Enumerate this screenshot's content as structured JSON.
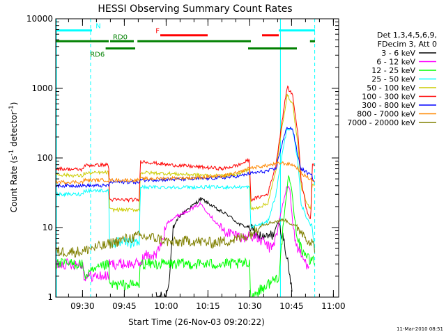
{
  "chart_data": {
    "type": "line",
    "title": "HESSI Observing Summary Count Rates",
    "xlabel": "Start Time (26-Nov-03 09:20:22)",
    "ylabel_main": "Count Rate (s",
    "ylabel_sup1": "-1",
    "ylabel_mid": " detector",
    "ylabel_sup2": "-1",
    "ylabel_end": ")",
    "footer": "11-Mar-2010 08:51",
    "x_unit": "minutes since 09:20:22",
    "xlim": [
      0,
      101.5
    ],
    "ylim": [
      1,
      10000
    ],
    "y_scale": "log",
    "x_ticks": [
      {
        "label": "09:30",
        "t": 9.6
      },
      {
        "label": "09:45",
        "t": 24.6
      },
      {
        "label": "10:00",
        "t": 39.6
      },
      {
        "label": "10:15",
        "t": 54.6
      },
      {
        "label": "10:30",
        "t": 69.6
      },
      {
        "label": "10:45",
        "t": 84.6
      },
      {
        "label": "11:00",
        "t": 99.6
      }
    ],
    "y_ticks": [
      {
        "label": "1",
        "v": 1
      },
      {
        "label": "10",
        "v": 10
      },
      {
        "label": "100",
        "v": 100
      },
      {
        "label": "1000",
        "v": 1000
      },
      {
        "label": "10000",
        "v": 10000
      }
    ],
    "legend_header": [
      "Det 1,3,4,5,6,9,",
      "FDecim 3, Att 0"
    ],
    "legend_position": "right",
    "series": [
      {
        "name": "3 - 6 keV",
        "color": "#000000",
        "points": [
          [
            36,
            1
          ],
          [
            39,
            1
          ],
          [
            40,
            1.2
          ],
          [
            41,
            2.5
          ],
          [
            42,
            9
          ],
          [
            44,
            14
          ],
          [
            47,
            18
          ],
          [
            50,
            22
          ],
          [
            52,
            26
          ],
          [
            55,
            22
          ],
          [
            58,
            18
          ],
          [
            62,
            15
          ],
          [
            66,
            11
          ],
          [
            69.6,
            10
          ],
          [
            72,
            8
          ],
          [
            75,
            7
          ],
          [
            78,
            8
          ],
          [
            80,
            12
          ],
          [
            82,
            6
          ],
          [
            84,
            2
          ],
          [
            85,
            1
          ]
        ]
      },
      {
        "name": "6 - 12 keV",
        "color": "#ff00ff",
        "points": [
          [
            0,
            3
          ],
          [
            8,
            3
          ],
          [
            9.8,
            3
          ],
          [
            10,
            2
          ],
          [
            19,
            2
          ],
          [
            19.3,
            3
          ],
          [
            30,
            3
          ],
          [
            32,
            4
          ],
          [
            36,
            4
          ],
          [
            38,
            6
          ],
          [
            40,
            12
          ],
          [
            44,
            15
          ],
          [
            48,
            18
          ],
          [
            52,
            22
          ],
          [
            56,
            14
          ],
          [
            60,
            9
          ],
          [
            64,
            8
          ],
          [
            68,
            7
          ],
          [
            69.6,
            8
          ],
          [
            72,
            7
          ],
          [
            75,
            6
          ],
          [
            77,
            5
          ],
          [
            79,
            7
          ],
          [
            81,
            18
          ],
          [
            83,
            40
          ],
          [
            84,
            35
          ],
          [
            85,
            12
          ],
          [
            86,
            6
          ],
          [
            88,
            4
          ],
          [
            90,
            3
          ],
          [
            91,
            3
          ]
        ]
      },
      {
        "name": "12 - 25 keV",
        "color": "#00ff00",
        "points": [
          [
            0,
            3
          ],
          [
            8,
            3
          ],
          [
            9.8,
            3
          ],
          [
            10,
            2
          ],
          [
            19,
            3
          ],
          [
            19.3,
            1.5
          ],
          [
            30,
            1.5
          ],
          [
            30.3,
            3
          ],
          [
            69.6,
            3
          ],
          [
            69.9,
            1
          ],
          [
            80,
            2
          ],
          [
            82,
            15
          ],
          [
            83.5,
            55
          ],
          [
            84.5,
            40
          ],
          [
            86,
            10
          ],
          [
            88,
            5
          ],
          [
            90,
            4
          ],
          [
            91.5,
            3
          ],
          [
            92,
            4
          ],
          [
            93,
            3
          ]
        ]
      },
      {
        "name": "25 - 50 keV",
        "color": "#00ffff",
        "points": [
          [
            0,
            30
          ],
          [
            9.8,
            30
          ],
          [
            10,
            34
          ],
          [
            19,
            34
          ],
          [
            19.3,
            6
          ],
          [
            30,
            6
          ],
          [
            30.3,
            38
          ],
          [
            69.6,
            38
          ],
          [
            69.9,
            10
          ],
          [
            76,
            12
          ],
          [
            79,
            30
          ],
          [
            81,
            100
          ],
          [
            83,
            270
          ],
          [
            85,
            250
          ],
          [
            87,
            80
          ],
          [
            88,
            22
          ],
          [
            90,
            14
          ],
          [
            91.5,
            11
          ],
          [
            92,
            9
          ],
          [
            93,
            5
          ]
        ]
      },
      {
        "name": "50 - 100 keV",
        "color": "#cccc00",
        "points": [
          [
            0,
            58
          ],
          [
            9.8,
            55
          ],
          [
            10,
            60
          ],
          [
            19,
            62
          ],
          [
            19.3,
            18
          ],
          [
            30,
            18
          ],
          [
            30.3,
            62
          ],
          [
            60,
            55
          ],
          [
            66,
            60
          ],
          [
            69.6,
            70
          ],
          [
            69.9,
            18
          ],
          [
            76,
            22
          ],
          [
            79,
            65
          ],
          [
            81,
            250
          ],
          [
            83,
            800
          ],
          [
            85,
            600
          ],
          [
            87,
            140
          ],
          [
            88,
            40
          ],
          [
            90,
            22
          ],
          [
            91.5,
            18
          ],
          [
            92,
            45
          ],
          [
            93,
            40
          ]
        ]
      },
      {
        "name": "100 - 300 keV",
        "color": "#ff0000",
        "points": [
          [
            0,
            70
          ],
          [
            9.8,
            68
          ],
          [
            10,
            78
          ],
          [
            19,
            80
          ],
          [
            19.3,
            25
          ],
          [
            30,
            25
          ],
          [
            30.3,
            90
          ],
          [
            40,
            80
          ],
          [
            50,
            75
          ],
          [
            60,
            70
          ],
          [
            66,
            80
          ],
          [
            69.6,
            95
          ],
          [
            69.9,
            25
          ],
          [
            76,
            30
          ],
          [
            79,
            80
          ],
          [
            81,
            300
          ],
          [
            83,
            1050
          ],
          [
            85,
            800
          ],
          [
            87,
            200
          ],
          [
            88,
            50
          ],
          [
            90,
            18
          ],
          [
            91.5,
            13
          ],
          [
            92,
            80
          ],
          [
            93,
            75
          ]
        ]
      },
      {
        "name": "300 - 800 keV",
        "color": "#0000ff",
        "points": [
          [
            0,
            40
          ],
          [
            9.8,
            40
          ],
          [
            10,
            40
          ],
          [
            19,
            40
          ],
          [
            19.3,
            45
          ],
          [
            30,
            45
          ],
          [
            30.3,
            48
          ],
          [
            50,
            50
          ],
          [
            60,
            52
          ],
          [
            66,
            55
          ],
          [
            69.6,
            60
          ],
          [
            69.9,
            60
          ],
          [
            76,
            65
          ],
          [
            79,
            70
          ],
          [
            81,
            150
          ],
          [
            83,
            280
          ],
          [
            85,
            260
          ],
          [
            87,
            100
          ],
          [
            88,
            70
          ],
          [
            92,
            55
          ],
          [
            93,
            42
          ]
        ]
      },
      {
        "name": "800 - 7000 keV",
        "color": "#ff8800",
        "points": [
          [
            0,
            45
          ],
          [
            9.8,
            45
          ],
          [
            10,
            48
          ],
          [
            19,
            48
          ],
          [
            19.3,
            48
          ],
          [
            30,
            48
          ],
          [
            30.3,
            50
          ],
          [
            50,
            52
          ],
          [
            60,
            55
          ],
          [
            66,
            62
          ],
          [
            69.6,
            72
          ],
          [
            69.9,
            72
          ],
          [
            76,
            78
          ],
          [
            79,
            82
          ],
          [
            81,
            85
          ],
          [
            83,
            82
          ],
          [
            85,
            80
          ],
          [
            87,
            70
          ],
          [
            88,
            60
          ],
          [
            92,
            48
          ],
          [
            93,
            45
          ]
        ]
      },
      {
        "name": "7000 - 20000 keV",
        "color": "#808000",
        "points": [
          [
            0,
            4.5
          ],
          [
            10,
            4.5
          ],
          [
            12,
            5
          ],
          [
            18,
            5.5
          ],
          [
            20,
            6
          ],
          [
            26,
            7
          ],
          [
            30,
            7.5
          ],
          [
            36,
            7
          ],
          [
            42,
            6
          ],
          [
            48,
            6.5
          ],
          [
            56,
            6
          ],
          [
            62,
            6.5
          ],
          [
            66,
            7
          ],
          [
            69.6,
            8
          ],
          [
            74,
            11
          ],
          [
            78,
            12
          ],
          [
            82,
            13
          ],
          [
            85,
            11
          ],
          [
            88,
            9
          ],
          [
            90,
            7
          ],
          [
            92,
            6
          ],
          [
            93,
            5
          ]
        ]
      }
    ],
    "state_bars": [
      {
        "name": "N",
        "label": "N",
        "label_color": "#00ffff",
        "color": "#00ffff",
        "level": 6800,
        "segments": [
          [
            0,
            13
          ],
          [
            80,
            93
          ]
        ],
        "label_at": 14.3
      },
      {
        "name": "F",
        "label": "F",
        "label_color": "#ff0000",
        "color": "#ff0000",
        "level": 5800,
        "segments": [
          [
            37.5,
            54.5
          ],
          [
            74,
            80
          ]
        ],
        "label_at": 35.8
      },
      {
        "name": "RD0",
        "label": "RD0",
        "label_color": "#008000",
        "color": "#008000",
        "level": 4750,
        "segments": [
          [
            0,
            19
          ],
          [
            19.5,
            28
          ],
          [
            29.3,
            70
          ],
          [
            91.2,
            93
          ]
        ],
        "label_at": 20.5
      },
      {
        "name": "RD6",
        "label": "RD6",
        "label_color": "#008000",
        "color": "#008000",
        "level": 3750,
        "segments": [
          [
            17.9,
            28.5
          ],
          [
            69,
            86.5
          ]
        ],
        "label_at": 12.3
      }
    ],
    "vertical_markers": [
      {
        "t": 0.3,
        "color": "#00ffff",
        "style": "solid"
      },
      {
        "t": 12.5,
        "color": "#00ffff",
        "style": "dashed"
      },
      {
        "t": 80.6,
        "color": "#00ffff",
        "style": "solid"
      },
      {
        "t": 92.9,
        "color": "#00ffff",
        "style": "dashed"
      }
    ]
  }
}
